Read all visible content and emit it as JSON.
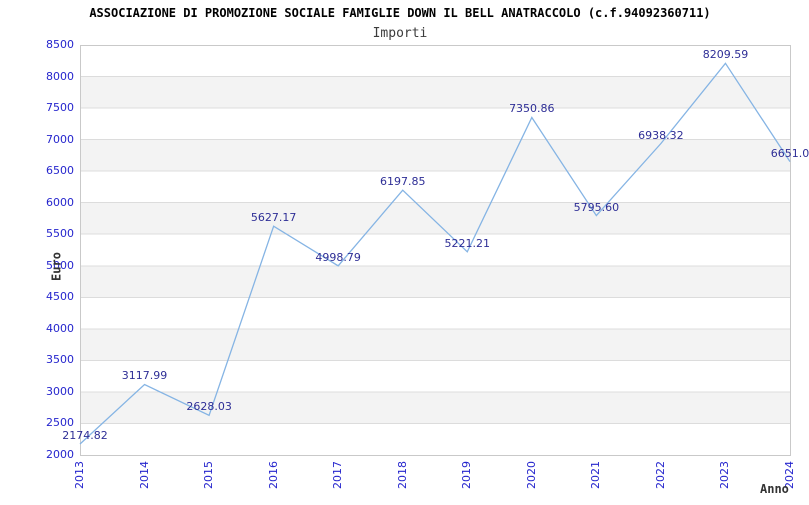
{
  "title": "ASSOCIAZIONE DI PROMOZIONE SOCIALE FAMIGLIE DOWN IL BELL ANATRACCOLO (c.f.94092360711)",
  "subtitle": "Importi",
  "chart_data": {
    "type": "line",
    "x": [
      2013,
      2014,
      2015,
      2016,
      2017,
      2018,
      2019,
      2020,
      2021,
      2022,
      2023,
      2024
    ],
    "series": [
      {
        "name": "Importi",
        "values": [
          2174.82,
          3117.99,
          2628.03,
          5627.17,
          4998.79,
          6197.85,
          5221.21,
          7350.86,
          5795.6,
          6938.32,
          8209.59,
          6651.0
        ]
      }
    ],
    "point_labels": [
      "2174.82",
      "3117.99",
      "2628.03",
      "5627.17",
      "4998.79",
      "6197.85",
      "5221.21",
      "7350.86",
      "5795.60",
      "6938.32",
      "8209.59",
      "6651.0"
    ],
    "xlabel": "Anno",
    "ylabel": "Euro",
    "ylim": [
      2000,
      8500
    ],
    "ytick_step": 500,
    "yticks": [
      "2000",
      "2500",
      "3000",
      "3500",
      "4000",
      "4500",
      "5000",
      "5500",
      "6000",
      "6500",
      "7000",
      "7500",
      "8000",
      "8500"
    ],
    "grid": true,
    "legend": false,
    "colors": {
      "line": "#85b4e4",
      "tick_label": "#2525cd",
      "point_label": "#2e2e96",
      "band": "#f3f3f3",
      "gridline": "#dcdcdc",
      "plot_border": "#c9c9c9",
      "title": "#000000",
      "subtitle": "#3c3c3c",
      "axis_title": "#333333",
      "background": "#ffffff"
    }
  }
}
